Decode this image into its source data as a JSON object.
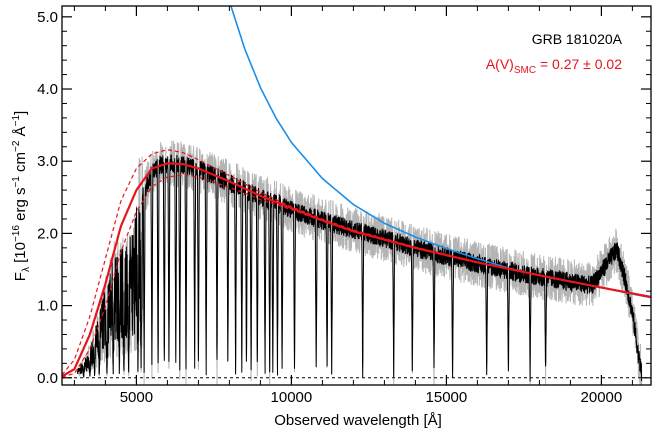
{
  "chart_data": {
    "type": "line",
    "xlabel": "Observed wavelength [Å]",
    "ylabel_parts": {
      "symbol": "F",
      "symbol_sub": "λ",
      "open": " [10",
      "exp": "−16",
      "unit1": " erg s",
      "exp1": "−1",
      "unit2": " cm",
      "exp2": "−2",
      "unit3": " Å",
      "exp3": "−1",
      "close": "]"
    },
    "xlim": [
      2600,
      21600
    ],
    "ylim": [
      -0.1,
      5.15
    ],
    "xticks": [
      5000,
      10000,
      15000,
      20000
    ],
    "xtick_labels": [
      "5000",
      "10000",
      "15000",
      "20000"
    ],
    "yticks": [
      0.0,
      1.0,
      2.0,
      3.0,
      4.0,
      5.0
    ],
    "ytick_labels": [
      "0.0",
      "1.0",
      "2.0",
      "3.0",
      "4.0",
      "5.0"
    ],
    "annotations": {
      "grb_name": "GRB 181020A",
      "av_prefix": "A(V)",
      "av_sub": "SMC",
      "av_value": " = 0.27 ± 0.02"
    },
    "colors": {
      "error": "#b4b4b4",
      "spectrum": "#000000",
      "model": "#e8141c",
      "model_bounds": "#e8141c",
      "powerlaw": "#1c8ee8",
      "zero_line": "#000000"
    },
    "series": [
      {
        "role": "powerlaw",
        "x": [
          8050,
          8500,
          9000,
          9500,
          10000,
          11000,
          12000,
          13000,
          14000,
          15000,
          16000,
          17000,
          18000,
          19000,
          20000,
          21000,
          21600
        ],
        "y": [
          5.15,
          4.55,
          4.02,
          3.6,
          3.26,
          2.76,
          2.4,
          2.14,
          1.95,
          1.79,
          1.65,
          1.52,
          1.42,
          1.33,
          1.25,
          1.16,
          1.11
        ]
      },
      {
        "role": "model",
        "x": [
          2600,
          3000,
          3500,
          4000,
          4500,
          5000,
          5500,
          6000,
          6500,
          7000,
          8000,
          9000,
          10000,
          11000,
          12000,
          14000,
          16000,
          18000,
          20000,
          21600
        ],
        "y": [
          0.02,
          0.12,
          0.6,
          1.3,
          2.1,
          2.6,
          2.9,
          2.97,
          2.96,
          2.9,
          2.72,
          2.52,
          2.35,
          2.18,
          2.03,
          1.8,
          1.6,
          1.42,
          1.25,
          1.12
        ]
      },
      {
        "role": "model-upper",
        "x": [
          2600,
          3000,
          3500,
          4000,
          4500,
          5000,
          5500,
          6000,
          6500,
          7000,
          8000,
          9000,
          10000,
          11000,
          12000,
          14000,
          16000,
          18000,
          20000,
          21600
        ],
        "y": [
          0.04,
          0.25,
          0.85,
          1.65,
          2.45,
          2.9,
          3.1,
          3.16,
          3.12,
          3.02,
          2.8,
          2.57,
          2.37,
          2.2,
          2.05,
          1.81,
          1.6,
          1.42,
          1.25,
          1.12
        ]
      },
      {
        "role": "model-lower",
        "x": [
          2600,
          3000,
          3500,
          4000,
          4500,
          5000,
          5500,
          6000,
          6500,
          7000,
          8000,
          9000,
          10000,
          11000,
          12000,
          14000,
          16000,
          18000,
          20000,
          21600
        ],
        "y": [
          0.01,
          0.06,
          0.4,
          0.98,
          1.75,
          2.3,
          2.65,
          2.78,
          2.81,
          2.78,
          2.64,
          2.47,
          2.33,
          2.17,
          2.02,
          1.79,
          1.59,
          1.42,
          1.25,
          1.12
        ]
      }
    ],
    "spectrum_envelope": {
      "x": [
        3100,
        3400,
        3700,
        4000,
        4300,
        4600,
        4900,
        5200,
        5500,
        5800,
        6100,
        6500,
        7000,
        7500,
        8000,
        8500,
        9000,
        9500,
        10000,
        10500,
        11000,
        12000,
        13000,
        14000,
        15000,
        16000,
        17000,
        18000,
        19000,
        19700,
        20200,
        20500,
        20800,
        21000,
        21200,
        21300
      ],
      "y": [
        0.1,
        0.25,
        0.6,
        1.05,
        1.4,
        1.5,
        1.6,
        2.5,
        2.85,
        2.95,
        2.97,
        2.95,
        2.88,
        2.8,
        2.7,
        2.6,
        2.5,
        2.42,
        2.32,
        2.25,
        2.18,
        2.05,
        1.93,
        1.8,
        1.68,
        1.58,
        1.48,
        1.4,
        1.33,
        1.28,
        1.6,
        1.78,
        1.3,
        0.9,
        0.3,
        0.05
      ],
      "noise": 0.13,
      "error_noise": 0.32
    },
    "absorption_lines": [
      3300,
      3500,
      3650,
      3800,
      4050,
      4250,
      4450,
      4600,
      4750,
      5050,
      5150,
      5250,
      5500,
      5700,
      5900,
      6050,
      6270,
      6400,
      6600,
      6880,
      7000,
      7250,
      7600,
      7950,
      8200,
      8400,
      8550,
      8700,
      8900,
      9150,
      9300,
      9400,
      9550,
      9700,
      10100,
      10800,
      11150,
      11300,
      12300,
      13300,
      13900,
      14600,
      15200,
      16300,
      17000,
      17700,
      18200
    ]
  }
}
